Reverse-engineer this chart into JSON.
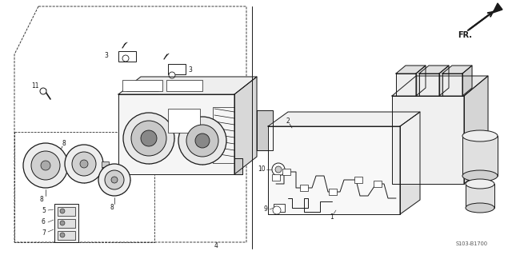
{
  "bg_color": "#ffffff",
  "line_color": "#1a1a1a",
  "gray_color": "#888888",
  "diagram_code": "S103-B1700",
  "figsize": [
    6.4,
    3.19
  ],
  "dpi": 100
}
